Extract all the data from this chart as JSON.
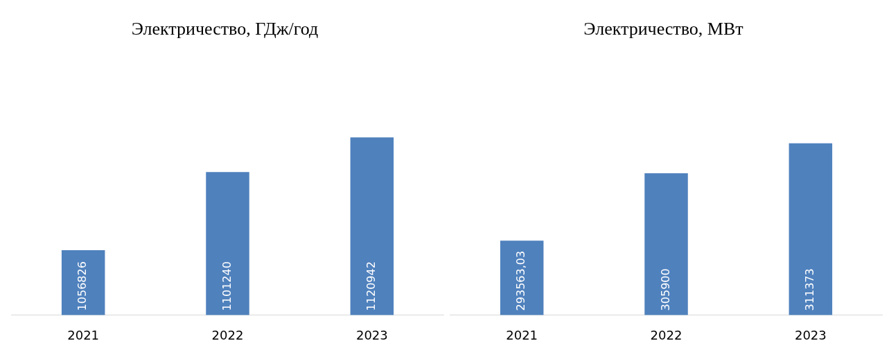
{
  "chart_data": [
    {
      "type": "bar",
      "title": "Электричество, ГДж/год",
      "categories": [
        "2021",
        "2022",
        "2023"
      ],
      "values": [
        1056826,
        1101240,
        1120942
      ],
      "color": "#4f81bd",
      "tick_labels": "x",
      "data_labels": true,
      "grid": false,
      "legend": false
    },
    {
      "type": "bar",
      "title": "Электричество, МВт",
      "categories": [
        "2021",
        "2022",
        "2023"
      ],
      "values": [
        293563.03,
        305900,
        311373
      ],
      "value_labels": [
        "293563,03",
        "305900",
        "311373"
      ],
      "color": "#4f81bd",
      "tick_labels": "x",
      "grid": false,
      "legend": false
    }
  ]
}
